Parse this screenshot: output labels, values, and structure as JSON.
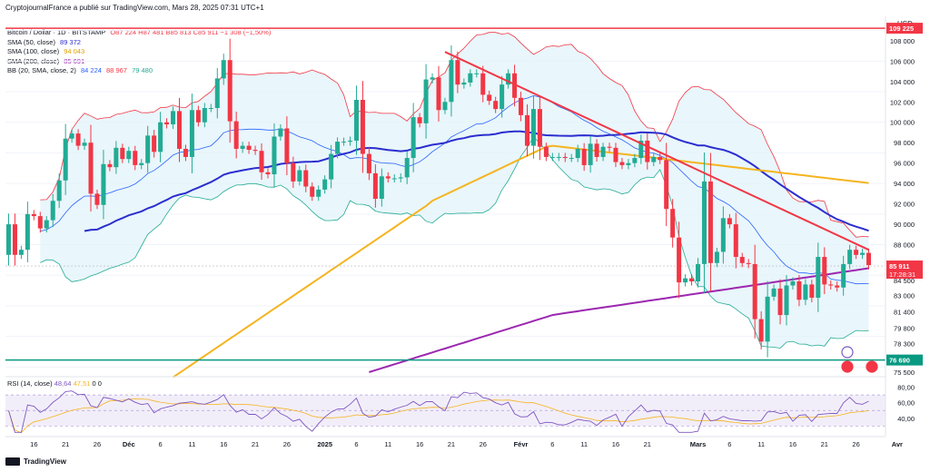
{
  "header": {
    "publisher": "CryptojournalFrance a publié sur TradingView.com, Mars 28, 2025 07:31 UTC+1"
  },
  "legend": {
    "symbol": "Bitcoin / Dollar · 1D · BITSTAMP",
    "ohlc": "O87 224  H87 481  B85 813  C85 911  −1 308 (−1,50%)",
    "sma50": "SMA (50, close)",
    "sma50_val": "89 372",
    "sma100": "SMA (100, close)",
    "sma100_val": "94 043",
    "sma200": "SMA (200, close)",
    "sma200_val": "85 691",
    "bb": "BB (20, SMA, close, 2)",
    "bb_vals": [
      "84 224",
      "88 967",
      "79 480"
    ],
    "rsi": "RSI (14, close)",
    "rsi_vals": [
      "48,64",
      "47,51",
      "0",
      "0"
    ]
  },
  "axis": {
    "unit": "USD",
    "price_ticks": [
      "108 000",
      "106 000",
      "104 000",
      "102 000",
      "100 000",
      "98 000",
      "96 000",
      "94 000",
      "92 000",
      "90 000",
      "88 000",
      "84 500",
      "83 000",
      "81 400",
      "79 800",
      "78 300",
      "75 500"
    ],
    "price_tags": {
      "top": "109 225",
      "last": "85 911",
      "countdown": "17:28:31",
      "support": "76 690"
    },
    "rsi_ticks": [
      "80,00",
      "60,00",
      "40,00"
    ],
    "date_ticks": [
      "16",
      "21",
      "26",
      "Déc",
      "6",
      "11",
      "16",
      "21",
      "26",
      "2025",
      "6",
      "11",
      "16",
      "21",
      "26",
      "Févr",
      "6",
      "11",
      "16",
      "21",
      "Mars",
      "6",
      "11",
      "16",
      "21",
      "26",
      "Avr"
    ]
  },
  "footer": {
    "brand": "TradingView"
  },
  "colors": {
    "up": "#22ab94",
    "down": "#f23645",
    "sma50": "#2b2ecf",
    "sma100": "#f5b41f",
    "sma200": "#9c27b0",
    "bb_fill": "#e3f4fa",
    "bb_upper": "#f23645",
    "bb_lower": "#22ab94",
    "bb_basis": "#2962ff",
    "trendline": "#f23645",
    "resistance": "#f23645",
    "support": "#089981",
    "rsi": "#7e57c2"
  },
  "chart_data": {
    "type": "candlestick",
    "title": "Bitcoin / Dollar · 1D · BITSTAMP",
    "ylabel": "USD",
    "ylim": [
      75500,
      109500
    ],
    "x": [
      "Nov 12",
      "Nov 13",
      "Nov 14",
      "Nov 15",
      "Nov 16",
      "Nov 17",
      "Nov 18",
      "Nov 19",
      "Nov 20",
      "Nov 21",
      "Nov 22",
      "Nov 23",
      "Nov 24",
      "Nov 25",
      "Nov 26",
      "Nov 27",
      "Nov 28",
      "Nov 29",
      "Nov 30",
      "Dec 1",
      "Dec 2",
      "Dec 3",
      "Dec 4",
      "Dec 5",
      "Dec 6",
      "Dec 7",
      "Dec 8",
      "Dec 9",
      "Dec 10",
      "Dec 11",
      "Dec 12",
      "Dec 13",
      "Dec 14",
      "Dec 15",
      "Dec 16",
      "Dec 17",
      "Dec 18",
      "Dec 19",
      "Dec 20",
      "Dec 21",
      "Dec 22",
      "Dec 23",
      "Dec 24",
      "Dec 25",
      "Dec 26",
      "Dec 27",
      "Dec 28",
      "Dec 29",
      "Dec 30",
      "Dec 31",
      "Jan 1",
      "Jan 2",
      "Jan 3",
      "Jan 4",
      "Jan 5",
      "Jan 6",
      "Jan 7",
      "Jan 8",
      "Jan 9",
      "Jan 10",
      "Jan 11",
      "Jan 12",
      "Jan 13",
      "Jan 14",
      "Jan 15",
      "Jan 16",
      "Jan 17",
      "Jan 18",
      "Jan 19",
      "Jan 20",
      "Jan 21",
      "Jan 22",
      "Jan 23",
      "Jan 24",
      "Jan 25",
      "Jan 26",
      "Jan 27",
      "Jan 28",
      "Jan 29",
      "Jan 30",
      "Jan 31",
      "Feb 1",
      "Feb 2",
      "Feb 3",
      "Feb 4",
      "Feb 5",
      "Feb 6",
      "Feb 7",
      "Feb 8",
      "Feb 9",
      "Feb 10",
      "Feb 11",
      "Feb 12",
      "Feb 13",
      "Feb 14",
      "Feb 15",
      "Feb 16",
      "Feb 17",
      "Feb 18",
      "Feb 19",
      "Feb 20",
      "Feb 21",
      "Feb 22",
      "Feb 23",
      "Feb 24",
      "Feb 25",
      "Feb 26",
      "Feb 27",
      "Feb 28",
      "Mar 1",
      "Mar 2",
      "Mar 3",
      "Mar 4",
      "Mar 5",
      "Mar 6",
      "Mar 7",
      "Mar 8",
      "Mar 9",
      "Mar 10",
      "Mar 11",
      "Mar 12",
      "Mar 13",
      "Mar 14",
      "Mar 15",
      "Mar 16",
      "Mar 17",
      "Mar 18",
      "Mar 19",
      "Mar 20",
      "Mar 21",
      "Mar 22",
      "Mar 23",
      "Mar 24",
      "Mar 25",
      "Mar 26",
      "Mar 27",
      "Mar 28"
    ],
    "close": [
      90000,
      87000,
      87500,
      91000,
      90800,
      89600,
      90400,
      92300,
      94300,
      98400,
      98900,
      97700,
      98000,
      93000,
      91900,
      95900,
      95600,
      97500,
      96400,
      97200,
      95800,
      96000,
      98700,
      97100,
      100000,
      99800,
      101100,
      97400,
      96600,
      101200,
      100000,
      101400,
      101400,
      104300,
      106100,
      100100,
      97400,
      97700,
      97300,
      97200,
      95100,
      94900,
      98600,
      99400,
      96000,
      94200,
      95300,
      93700,
      92700,
      93400,
      94400,
      96900,
      98100,
      98100,
      98200,
      102200,
      96900,
      95000,
      92500,
      94700,
      94500,
      94500,
      94600,
      96500,
      100500,
      99900,
      104200,
      104400,
      101200,
      102000,
      106100,
      103700,
      103900,
      104800,
      104800,
      102700,
      102100,
      101300,
      103700,
      104800,
      102400,
      100700,
      97700,
      101300,
      97600,
      96600,
      96600,
      96600,
      96500,
      96500,
      97400,
      95800,
      97900,
      96600,
      97600,
      97500,
      96100,
      95800,
      96000,
      96500,
      98200,
      96100,
      96600,
      96300,
      91500,
      88700,
      84300,
      84700,
      84400,
      86100,
      94200,
      86200,
      87300,
      90600,
      90000,
      86800,
      86200,
      86100,
      80700,
      78500,
      82900,
      83700,
      81100,
      84000,
      84400,
      82600,
      84100,
      82800,
      86800,
      84100,
      84000,
      83800,
      86100,
      87500,
      87000,
      87200,
      86000
    ],
    "sma50_close": 89372,
    "sma100_close": 94043,
    "sma200_close": 85691,
    "bb_basis": 84224,
    "bb_upper": 88967,
    "bb_lower": 79480,
    "last_close": 85911,
    "change": -1308,
    "change_pct": -1.5,
    "resistance_level": 109225,
    "support_level": 76690,
    "trendline": {
      "from": [
        "Jan 20",
        106900
      ],
      "to": [
        "Mar 28",
        87500
      ]
    },
    "rsi": {
      "value": 48.64,
      "signal": 47.51,
      "ylim": [
        20,
        90
      ],
      "bands": [
        70,
        30
      ],
      "mid": 50
    }
  }
}
